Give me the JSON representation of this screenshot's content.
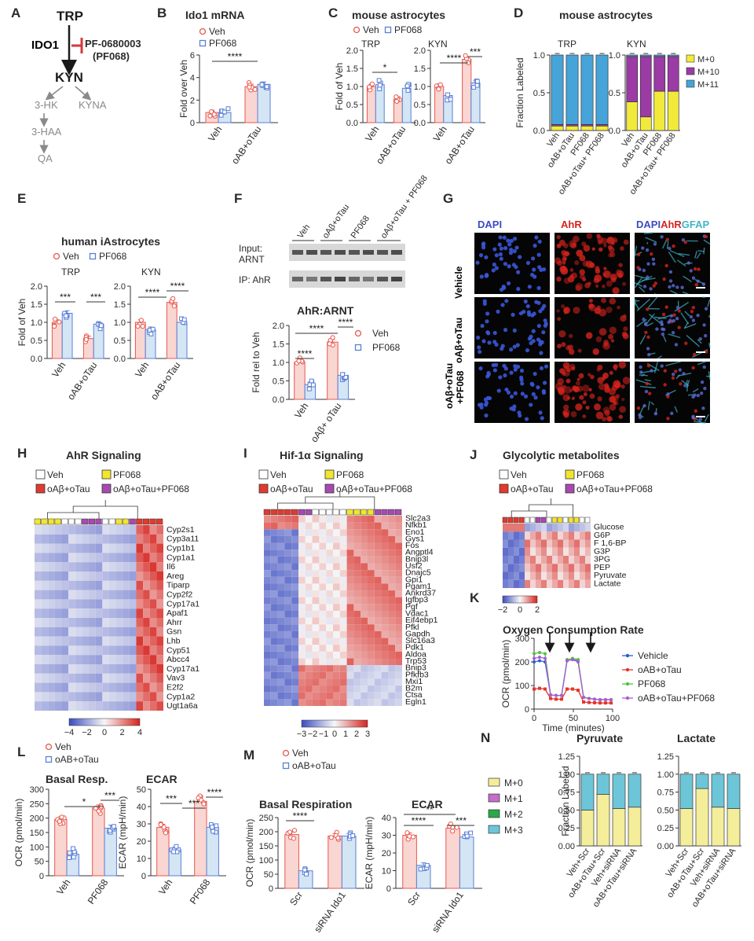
{
  "colors": {
    "veh": "#e8574c",
    "pf": "#5b7fd6",
    "vehFill": "#f9d6d2",
    "pfFill": "#d4e6f4",
    "idoBlue": "#2a8ccc",
    "inhibit": "#d43a3a",
    "m0": "#f2ea3b",
    "m10": "#9c3aa6",
    "m11": "#46a4d9",
    "n_m0": "#f4ee9a",
    "n_m1": "#c46ec8",
    "n_m2": "#2aa84a",
    "n_m3": "#6cc6d8",
    "ocrVeh": "#2b5bd6",
    "ocrOab": "#e6352b",
    "ocrPf": "#52c23e",
    "ocrOabPf": "#a95bd6",
    "hmVeh": "#ffffff",
    "hmOab": "#e23a2e",
    "hmPf": "#f2e530",
    "hmOabPf": "#a64ab0"
  },
  "panels": [
    "A",
    "B",
    "C",
    "D",
    "E",
    "F",
    "G",
    "H",
    "I",
    "J",
    "K",
    "L",
    "M",
    "N"
  ],
  "pathway": {
    "trp": "TRP",
    "ido1": "IDO1",
    "inhibitor": "PF-0680003",
    "inhibitor_abbr": "(PF068)",
    "kyn": "KYN",
    "hk": "3-HK",
    "kyna": "KYNA",
    "haa": "3-HAA",
    "qa": "QA"
  },
  "legend": {
    "veh": "Veh",
    "pf": "PF068",
    "oab": "oAB+oTau"
  },
  "stars": {
    "s1": "*",
    "s2": "**",
    "s3": "***",
    "s4": "****"
  },
  "panel_b": {
    "title": "Ido1 mRNA",
    "ylabel": "Fold over Veh",
    "yticks": [
      "0",
      "2",
      "4",
      "6"
    ],
    "categories": [
      "Veh",
      "oAB+oTau"
    ]
  },
  "panel_c": {
    "title": "mouse astrocytes",
    "sub_trp": "TRP",
    "sub_kyn": "KYN",
    "ylabel": "Fold of Veh",
    "yticks": [
      "0.0",
      "0.5",
      "1.0",
      "1.5",
      "2.0"
    ],
    "categories": [
      "Veh",
      "oAB+oTau"
    ]
  },
  "panel_d": {
    "title": "mouse astrocytes",
    "sub_trp": "TRP",
    "sub_kyn": "KYN",
    "ylabel": "Fraction Labeled",
    "yticks": [
      "0.0",
      "0.5",
      "1.0"
    ],
    "categories": [
      "Veh",
      "oAB+oTau",
      "PF068",
      "oAB+oTau+ PF068"
    ],
    "legend": [
      "M+0",
      "M+10",
      "M+11"
    ]
  },
  "panel_e": {
    "title": "human iAstrocytes",
    "sub_trp": "TRP",
    "sub_kyn": "KYN",
    "ylabel": "Fold of Veh",
    "yticks": [
      "0.0",
      "0.5",
      "1.0",
      "1.5",
      "2.0"
    ],
    "categories": [
      "Veh",
      "oAB+oTau"
    ]
  },
  "panel_f": {
    "lanes": [
      "Veh",
      "oAβ+oTau",
      "PF068",
      "oAβ+oTau + PF068"
    ],
    "input": "Input:",
    "input2": "ARNT",
    "ip": "IP: AhR",
    "chart_title": "AhR:ARNT",
    "ylabel": "Fold rel to Veh",
    "yticks": [
      "0.0",
      "0.5",
      "1.0",
      "1.5",
      "2.0"
    ],
    "categories": [
      "Veh",
      "oAβ+ oTau"
    ]
  },
  "panel_g": {
    "col1": "DAPI",
    "col2": "AhR",
    "col3a": "DAPI",
    "col3b": "AhR",
    "col3c": "GFAP",
    "rows": [
      "Vehicle",
      "oAβ+oTau",
      "oAβ+oTau +PF068"
    ]
  },
  "panel_h": {
    "title": "AhR Signaling",
    "genes": [
      "Cyp2s1",
      "Cyp3a11",
      "Cyp1b1",
      "Cyp1a1",
      "Il6",
      "Areg",
      "Tiparp",
      "Cyp2f2",
      "Cyp17a1",
      "Apaf1",
      "Ahrr",
      "Gsn",
      "Lhb",
      "Cyp51",
      "Abcc4",
      "Cyp17a1",
      "Vav3",
      "E2f2",
      "Cyp1a2",
      "Ugt1a6a"
    ],
    "scale": [
      "−4",
      "−2",
      "0",
      "2",
      "4"
    ]
  },
  "panel_i": {
    "title": "Hif-1α Signaling",
    "genes": [
      "Slc2a3",
      "Nfkb1",
      "Eno1",
      "Gys1",
      "Fos",
      "Angptl4",
      "Bnip3l",
      "Usf2",
      "Dnajc5",
      "Gpi1",
      "Pgam1",
      "Ankrd37",
      "Igfbp3",
      "Pgf",
      "Vdac1",
      "Eif4ebp1",
      "Pfkl",
      "Gapdh",
      "Slc16a3",
      "Pdk1",
      "Aldoa",
      "Trp53",
      "Bnip3",
      "Pfkfb3",
      "Mxi1",
      "B2m",
      "Ctsa",
      "Egln1"
    ],
    "scale": [
      "−3",
      "−2",
      "−1",
      "0",
      "1",
      "2",
      "3"
    ]
  },
  "panel_j": {
    "title": "Glycolytic metabolites",
    "metabolites": [
      "Glucose",
      "G6P",
      "F 1,6-BP",
      "G3P",
      "3PG",
      "PEP",
      "Pyruvate",
      "Lactate"
    ],
    "scale": [
      "−2",
      "0",
      "2"
    ]
  },
  "hm_legend": {
    "veh": "Veh",
    "pf": "PF068",
    "oab": "oAβ+oTau",
    "oabpf": "oAβ+oTau+PF068"
  },
  "panel_k": {
    "title": "Oxygen Consumption Rate",
    "ylabel": "OCR (pmol/min)",
    "xlabel": "Time (minutes)",
    "yticks": [
      "0",
      "100",
      "200",
      "300"
    ],
    "xticks": [
      "0",
      "50",
      "100"
    ],
    "legend": [
      "Vehicle",
      "oAB+oTau",
      "PF068",
      "oAB+oTau+PF068"
    ]
  },
  "panel_l": {
    "legend_veh": "Veh",
    "legend_oab": "oAB+oTau",
    "t1": "Basal Resp.",
    "t2": "ECAR",
    "ylabel1": "OCR (pmol/min)",
    "ylabel2": "ECAR (mpH/min)",
    "yticks1": [
      "0",
      "50",
      "100",
      "150",
      "200",
      "250",
      "300"
    ],
    "yticks2": [
      "0",
      "10",
      "20",
      "30",
      "40",
      "50"
    ],
    "categories": [
      "Veh",
      "PF068"
    ]
  },
  "panel_m": {
    "legend_veh": "Veh",
    "legend_oab": "oAB+oTau",
    "t1": "Basal Respiration",
    "t2": "ECAR",
    "ylabel1": "OCR (pmol/min)",
    "ylabel2": "ECAR (mpH/min)",
    "yticks1": [
      "0",
      "50",
      "100",
      "150",
      "200",
      "250"
    ],
    "yticks2": [
      "0",
      "10",
      "20",
      "30",
      "40"
    ],
    "categories": [
      "Scr",
      "siRNA Ido1"
    ]
  },
  "panel_n": {
    "t1": "Pyruvate",
    "t2": "Lactate",
    "ylabel": "Fraction Labeled",
    "yticks": [
      "0.00",
      "0.25",
      "0.50",
      "0.75",
      "1.00",
      "1.25"
    ],
    "legend": [
      "M+0",
      "M+1",
      "M+2",
      "M+3"
    ],
    "categories": [
      "Veh+Scr",
      "oAB+oTau+Scr",
      "Veh+siRNA",
      "oAB+oTau+siRNA"
    ]
  },
  "chart_data": [
    {
      "type": "bar",
      "id": "B",
      "title": "Ido1 mRNA",
      "categories": [
        "Veh",
        "oAB+oTau"
      ],
      "series": [
        {
          "name": "Veh",
          "values": [
            0.9,
            3.2
          ]
        },
        {
          "name": "PF068",
          "values": [
            0.9,
            3.4
          ]
        }
      ],
      "ylabel": "Fold over Veh",
      "ylim": [
        0,
        6
      ]
    },
    {
      "type": "bar",
      "id": "C-TRP",
      "title": "TRP",
      "categories": [
        "Veh",
        "oAB+oTau"
      ],
      "series": [
        {
          "name": "Veh",
          "values": [
            1.0,
            0.65
          ]
        },
        {
          "name": "PF068",
          "values": [
            1.05,
            0.95
          ]
        }
      ],
      "ylim": [
        0,
        2
      ]
    },
    {
      "type": "bar",
      "id": "C-KYN",
      "title": "KYN",
      "categories": [
        "Veh",
        "oAB+oTau"
      ],
      "series": [
        {
          "name": "Veh",
          "values": [
            1.0,
            1.75
          ]
        },
        {
          "name": "PF068",
          "values": [
            0.75,
            1.1
          ]
        }
      ],
      "ylim": [
        0,
        2
      ]
    },
    {
      "type": "bar",
      "id": "D-TRP",
      "title": "TRP",
      "categories": [
        "Veh",
        "oAB+oTau",
        "PF068",
        "oAB+oTau+ PF068"
      ],
      "series": [
        {
          "name": "M+0",
          "values": [
            0.06,
            0.06,
            0.06,
            0.06
          ]
        },
        {
          "name": "M+10",
          "values": [
            0.02,
            0.02,
            0.02,
            0.02
          ]
        },
        {
          "name": "M+11",
          "values": [
            0.92,
            0.92,
            0.92,
            0.92
          ]
        }
      ],
      "ylim": [
        0,
        1
      ]
    },
    {
      "type": "bar",
      "id": "D-KYN",
      "title": "KYN",
      "categories": [
        "Veh",
        "oAB+oTau",
        "PF068",
        "oAB+oTau+ PF068"
      ],
      "series": [
        {
          "name": "M+0",
          "values": [
            0.38,
            0.18,
            0.52,
            0.52
          ]
        },
        {
          "name": "M+10",
          "values": [
            0.6,
            0.8,
            0.46,
            0.46
          ]
        },
        {
          "name": "M+11",
          "values": [
            0.02,
            0.02,
            0.02,
            0.02
          ]
        }
      ],
      "ylim": [
        0,
        1
      ]
    },
    {
      "type": "bar",
      "id": "E-TRP",
      "title": "TRP",
      "categories": [
        "Veh",
        "oAB+oTau"
      ],
      "series": [
        {
          "name": "Veh",
          "values": [
            1.0,
            0.55
          ]
        },
        {
          "name": "PF068",
          "values": [
            1.25,
            0.95
          ]
        }
      ],
      "ylim": [
        0,
        2
      ]
    },
    {
      "type": "bar",
      "id": "E-KYN",
      "title": "KYN",
      "categories": [
        "Veh",
        "oAB+oTau"
      ],
      "series": [
        {
          "name": "Veh",
          "values": [
            1.0,
            1.55
          ]
        },
        {
          "name": "PF068",
          "values": [
            0.8,
            1.0
          ]
        }
      ],
      "ylim": [
        0,
        2
      ]
    },
    {
      "type": "bar",
      "id": "F",
      "title": "AhR:ARNT",
      "categories": [
        "Veh",
        "oAβ+ oTau"
      ],
      "series": [
        {
          "name": "Veh",
          "values": [
            1.0,
            1.55
          ]
        },
        {
          "name": "PF068",
          "values": [
            0.4,
            0.65
          ]
        }
      ],
      "ylim": [
        0,
        2
      ]
    },
    {
      "type": "line",
      "id": "K",
      "title": "Oxygen Consumption Rate",
      "x": [
        0,
        7,
        14,
        21,
        28,
        35,
        42,
        49,
        56,
        63,
        70,
        77,
        84,
        91,
        98
      ],
      "series": [
        {
          "name": "Vehicle",
          "values": [
            200,
            205,
            200,
            60,
            58,
            58,
            205,
            210,
            205,
            50,
            45,
            42,
            40,
            40,
            40
          ]
        },
        {
          "name": "oAB+oTau",
          "values": [
            85,
            88,
            85,
            45,
            42,
            42,
            85,
            85,
            80,
            30,
            28,
            27,
            26,
            26,
            26
          ]
        },
        {
          "name": "PF068",
          "values": [
            235,
            240,
            235,
            60,
            58,
            58,
            210,
            215,
            210,
            50,
            45,
            42,
            40,
            40,
            40
          ]
        },
        {
          "name": "oAB+oTau+PF068",
          "values": [
            215,
            220,
            215,
            60,
            58,
            58,
            205,
            210,
            200,
            50,
            45,
            42,
            40,
            40,
            40
          ]
        }
      ],
      "ylim": [
        0,
        300
      ],
      "xlim": [
        0,
        100
      ]
    },
    {
      "type": "bar",
      "id": "L-Basal",
      "title": "Basal Resp.",
      "categories": [
        "Veh",
        "PF068"
      ],
      "series": [
        {
          "name": "Veh",
          "values": [
            195,
            235
          ]
        },
        {
          "name": "oAB+oTau",
          "values": [
            75,
            165
          ]
        }
      ],
      "ylim": [
        0,
        300
      ]
    },
    {
      "type": "bar",
      "id": "L-ECAR",
      "title": "ECAR",
      "categories": [
        "Veh",
        "PF068"
      ],
      "series": [
        {
          "name": "Veh",
          "values": [
            28,
            43
          ]
        },
        {
          "name": "oAB+oTau",
          "values": [
            15,
            28
          ]
        }
      ],
      "ylim": [
        0,
        50
      ]
    },
    {
      "type": "bar",
      "id": "M-Basal",
      "title": "Basal Respiration",
      "categories": [
        "Scr",
        "siRNA Ido1"
      ],
      "series": [
        {
          "name": "Veh",
          "values": [
            190,
            185
          ]
        },
        {
          "name": "oAB+oTau",
          "values": [
            62,
            185
          ]
        }
      ],
      "ylim": [
        0,
        250
      ]
    },
    {
      "type": "bar",
      "id": "M-ECAR",
      "title": "ECAR",
      "categories": [
        "Scr",
        "siRNA Ido1"
      ],
      "series": [
        {
          "name": "Veh",
          "values": [
            30,
            34
          ]
        },
        {
          "name": "oAB+oTau",
          "values": [
            13,
            29
          ]
        }
      ],
      "ylim": [
        0,
        40
      ]
    },
    {
      "type": "bar",
      "id": "N-Pyruvate",
      "title": "Pyruvate",
      "categories": [
        "Veh+Scr",
        "oAB+oTau+Scr",
        "Veh+siRNA",
        "oAB+oTau+siRNA"
      ],
      "series": [
        {
          "name": "M+0",
          "values": [
            0.5,
            0.72,
            0.52,
            0.54
          ]
        },
        {
          "name": "M+1",
          "values": [
            0.0,
            0.0,
            0.0,
            0.0
          ]
        },
        {
          "name": "M+2",
          "values": [
            0.0,
            0.0,
            0.0,
            0.0
          ]
        },
        {
          "name": "M+3",
          "values": [
            0.5,
            0.28,
            0.48,
            0.46
          ]
        }
      ],
      "ylim": [
        0,
        1.25
      ]
    },
    {
      "type": "bar",
      "id": "N-Lactate",
      "title": "Lactate",
      "categories": [
        "Veh+Scr",
        "oAB+oTau+Scr",
        "Veh+siRNA",
        "oAB+oTau+siRNA"
      ],
      "series": [
        {
          "name": "M+0",
          "values": [
            0.52,
            0.8,
            0.54,
            0.52
          ]
        },
        {
          "name": "M+1",
          "values": [
            0.0,
            0.0,
            0.0,
            0.0
          ]
        },
        {
          "name": "M+2",
          "values": [
            0.0,
            0.0,
            0.0,
            0.0
          ]
        },
        {
          "name": "M+3",
          "values": [
            0.48,
            0.2,
            0.46,
            0.48
          ]
        }
      ],
      "ylim": [
        0,
        1.25
      ]
    }
  ]
}
